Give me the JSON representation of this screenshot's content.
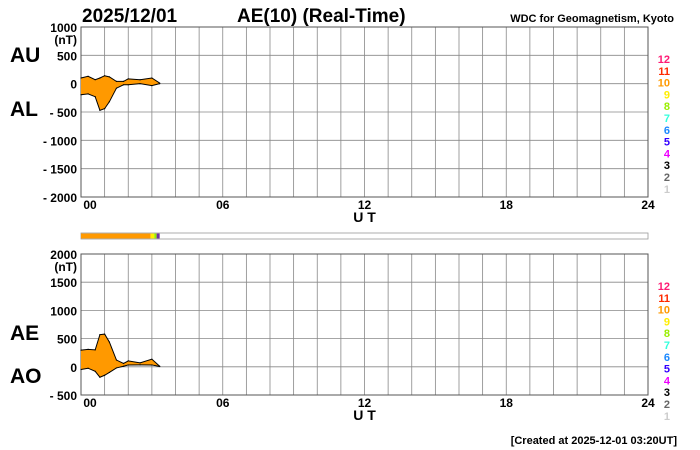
{
  "header": {
    "date": "2025/12/01",
    "title": "AE(10) (Real-Time)",
    "source": "WDC for Geomagnetism, Kyoto"
  },
  "footer": {
    "created": "[Created at 2025-12-01 03:20UT]"
  },
  "legend": {
    "items": [
      {
        "label": "12",
        "color": "#ff1a75"
      },
      {
        "label": "11",
        "color": "#ff2a00"
      },
      {
        "label": "10",
        "color": "#ff9900"
      },
      {
        "label": "9",
        "color": "#ffee00"
      },
      {
        "label": "8",
        "color": "#99ee00"
      },
      {
        "label": "7",
        "color": "#33ffdd"
      },
      {
        "label": "6",
        "color": "#1a88ff"
      },
      {
        "label": "5",
        "color": "#3300ff"
      },
      {
        "label": "4",
        "color": "#ee00ff"
      },
      {
        "label": "3",
        "color": "#000000"
      },
      {
        "label": "2",
        "color": "#666666"
      },
      {
        "label": "1",
        "color": "#cccccc"
      }
    ]
  },
  "station_bar": {
    "segments": [
      {
        "from": 0,
        "to": 2.95,
        "color": "#ff9900"
      },
      {
        "from": 2.95,
        "to": 3.1,
        "color": "#ffee00"
      },
      {
        "from": 3.1,
        "to": 3.2,
        "color": "#99ee00"
      },
      {
        "from": 3.2,
        "to": 3.33,
        "color": "#7030a0"
      }
    ]
  },
  "chart_data": [
    {
      "type": "area",
      "ylabel_unit": "(nT)",
      "series_labels": [
        "AU",
        "AL"
      ],
      "xlabel": "U T",
      "xlim": [
        0,
        24
      ],
      "ylim": [
        -2000,
        1000
      ],
      "xticks": [
        "00",
        "06",
        "12",
        "18",
        "24"
      ],
      "yticks": [
        "1000",
        "500",
        "0",
        "- 500",
        "- 1000",
        "- 1500",
        "- 2000"
      ],
      "grid": true,
      "fill_color": "#ff9900",
      "x": [
        0,
        0.3,
        0.6,
        0.8,
        1.0,
        1.2,
        1.5,
        1.8,
        2.0,
        2.5,
        3.0,
        3.33
      ],
      "series": [
        {
          "name": "AU",
          "values": [
            100,
            130,
            70,
            100,
            140,
            120,
            40,
            40,
            85,
            70,
            100,
            10
          ]
        },
        {
          "name": "AL",
          "values": [
            -195,
            -180,
            -230,
            -470,
            -440,
            -320,
            -80,
            -20,
            -20,
            0,
            -35,
            0
          ]
        }
      ]
    },
    {
      "type": "area",
      "ylabel_unit": "(nT)",
      "series_labels": [
        "AE",
        "AO"
      ],
      "xlabel": "U T",
      "xlim": [
        0,
        24
      ],
      "ylim": [
        -500,
        2000
      ],
      "xticks": [
        "00",
        "06",
        "12",
        "18",
        "24"
      ],
      "yticks": [
        "2000",
        "1500",
        "1000",
        "500",
        "0",
        "- 500"
      ],
      "grid": true,
      "fill_color": "#ff9900",
      "x": [
        0,
        0.3,
        0.6,
        0.8,
        1.0,
        1.2,
        1.5,
        1.8,
        2.0,
        2.5,
        3.0,
        3.33
      ],
      "series": [
        {
          "name": "AE",
          "values": [
            295,
            310,
            300,
            570,
            580,
            440,
            120,
            60,
            105,
            70,
            135,
            10
          ]
        },
        {
          "name": "AO",
          "values": [
            -48,
            -25,
            -80,
            -185,
            -150,
            -100,
            -20,
            10,
            33,
            35,
            33,
            5
          ]
        }
      ]
    }
  ]
}
